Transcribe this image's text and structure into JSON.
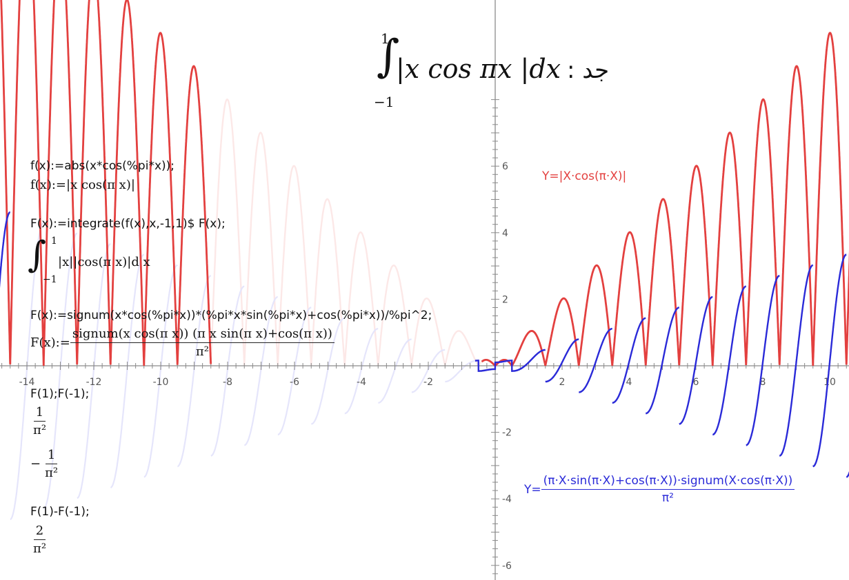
{
  "problem": {
    "upper": "1",
    "lower": "−1",
    "integrand": "|x cos πx |dx",
    "arabic": "جد :"
  },
  "session": {
    "line1_input": "f(x):=abs(x*cos(%pi*x));",
    "line1_output": "f(x):=|x cos(π x)|",
    "line2_input": "F(x):=integrate(f(x),x,-1,1)$ F(x);",
    "line2_output_upper": "1",
    "line2_output_lower": "−1",
    "line2_output_body": "|x||cos(π x)|d x",
    "line3_input": "F(x):=signum(x*cos(%pi*x))*(%pi*x*sin(%pi*x)+cos(%pi*x))/%pi^2;",
    "line3_output_lhs": "F(x):=",
    "line3_output_num": "signum(x cos(π x)) (π x sin(π x)+cos(π x))",
    "line3_output_den": "π²",
    "line4_input": "F(1);F(-1);",
    "line4_out1_num": "1",
    "line4_out1_den": "π²",
    "line4_out2_sign": "−",
    "line4_out2_num": "1",
    "line4_out2_den": "π²",
    "line5_input": "F(1)-F(-1);",
    "line5_out_num": "2",
    "line5_out_den": "π²"
  },
  "labels": {
    "red_label": "Y=|X·cos(π·X)|",
    "blue_prefix": "Y=",
    "blue_num": "(π·X·sin(π·X)+cos(π·X))·signum(X·cos(π·X))",
    "blue_den": "π²"
  },
  "chart_data": {
    "type": "line",
    "title": "",
    "xlabel": "",
    "ylabel": "",
    "xlim": [
      -15.0,
      10.7
    ],
    "ylim": [
      -6.6,
      8.0
    ],
    "x_ticks": [
      -14,
      -12,
      -10,
      -8,
      -6,
      -4,
      -2,
      2,
      4,
      6,
      8,
      10
    ],
    "y_ticks": [
      -6,
      -4,
      -2,
      2,
      4,
      6
    ],
    "grid": false,
    "series": [
      {
        "name": "Y=|X·cos(π·X)|",
        "color": "#e3403f",
        "expression": "|x·cos(πx)|"
      },
      {
        "name": "Y=(π·X·sin(π·X)+cos(π·X))·signum(X·cos(π·X))/π²",
        "color": "#2a2ad8",
        "expression": "signum(x·cos(πx))·(πx·sin(πx)+cos(πx))/π²"
      }
    ]
  },
  "colors": {
    "red": "#e3403f",
    "blue": "#2a2ad8",
    "axis": "#555555"
  }
}
